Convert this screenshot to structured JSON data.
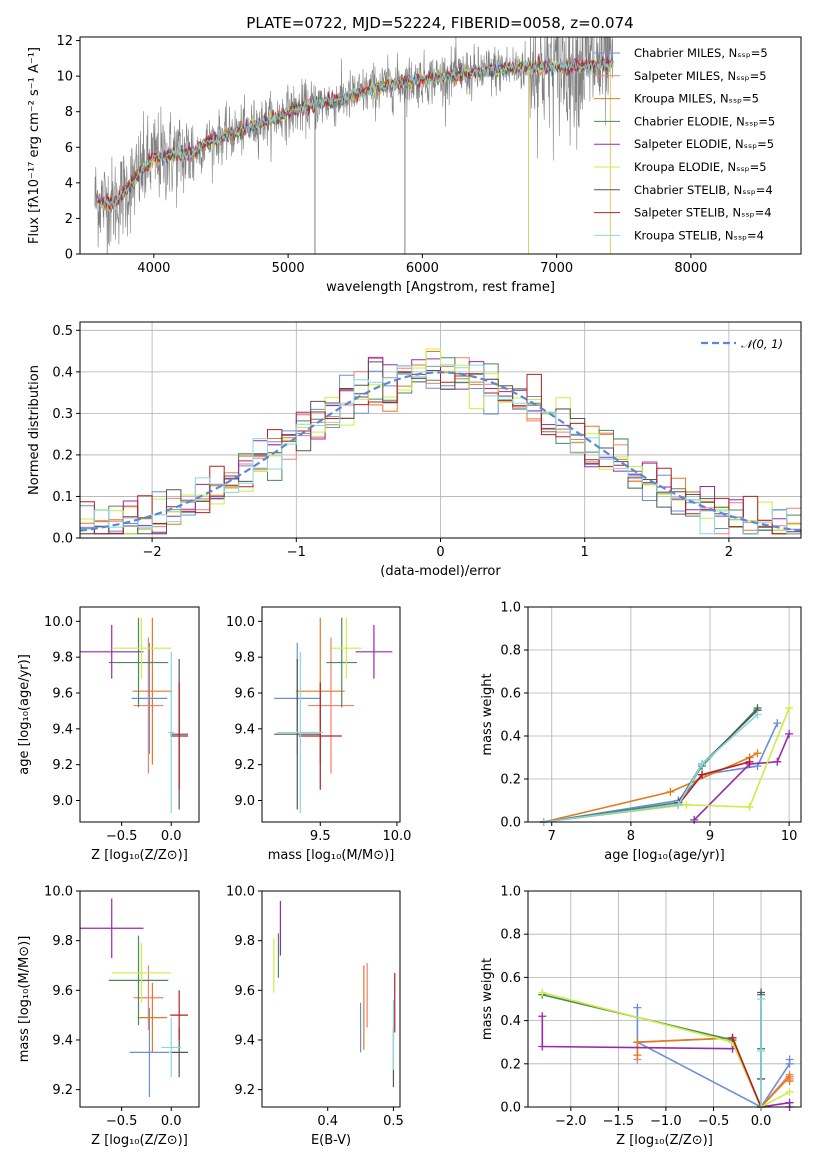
{
  "colors": [
    "#6a8fd6",
    "#f08070",
    "#e07b20",
    "#4a8a5a",
    "#9b27b0",
    "#ccee44",
    "#555555",
    "#b22222",
    "#88d8e0"
  ],
  "chart_data": [
    {
      "id": "spectrum",
      "type": "line",
      "title": "PLATE=0722, MJD=52224, FIBERID=0058, z=0.074",
      "xlabel": "wavelength [Angstrom, rest frame]",
      "ylabel": "Flux [fλ10⁻¹⁷ erg cm⁻² s⁻¹ A⁻¹]",
      "xlim": [
        3450,
        8820
      ],
      "ylim": [
        0,
        12.2
      ],
      "xticks": [
        "4000",
        "5000",
        "6000",
        "7000",
        "8000"
      ],
      "yticks": [
        "0",
        "2",
        "4",
        "6",
        "8",
        "10",
        "12"
      ],
      "grid": false,
      "legend_position": "top-right",
      "series": [
        {
          "name": "Chabrier MILES, Nₛₛₚ=5"
        },
        {
          "name": "Salpeter MILES, Nₛₛₚ=5"
        },
        {
          "name": "Kroupa MILES, Nₛₛₚ=5"
        },
        {
          "name": "Chabrier ELODIE, Nₛₛₚ=5"
        },
        {
          "name": "Salpeter ELODIE, Nₛₛₚ=5"
        },
        {
          "name": "Kroupa ELODIE, Nₛₛₚ=5"
        },
        {
          "name": "Chabrier STELIB, Nₛₛₚ=4"
        },
        {
          "name": "Salpeter STELIB, Nₛₛₚ=4"
        },
        {
          "name": "Kroupa STELIB, Nₛₛₚ=4"
        }
      ],
      "continuum": {
        "x": [
          3560,
          3700,
          3800,
          3900,
          4000,
          4100,
          4200,
          4300,
          4400,
          4500,
          4600,
          4700,
          4800,
          4900,
          5000,
          5200,
          5400,
          5600,
          5800,
          6000,
          6200,
          6400,
          6600,
          6800,
          7000,
          7200,
          7400
        ],
        "y": [
          3.1,
          2.8,
          3.6,
          4.6,
          5.4,
          5.5,
          5.6,
          5.7,
          6.3,
          6.6,
          6.8,
          7.1,
          7.4,
          7.6,
          8.0,
          8.4,
          8.7,
          9.2,
          9.6,
          9.8,
          10.0,
          10.2,
          10.4,
          10.5,
          10.5,
          10.6,
          10.7
        ]
      }
    },
    {
      "id": "residuals",
      "type": "histogram",
      "xlabel": "(data-model)/error",
      "ylabel": "Normed distribution",
      "xlim": [
        -2.5,
        2.5
      ],
      "ylim": [
        0,
        0.52
      ],
      "xticks": [
        "−2",
        "−1",
        "0",
        "1",
        "2"
      ],
      "yticks": [
        "0.0",
        "0.1",
        "0.2",
        "0.3",
        "0.4",
        "0.5"
      ],
      "grid": true,
      "bin_width": 0.1,
      "reference": {
        "name": "𝒩(0, 1)",
        "mean": 0,
        "sigma": 1
      },
      "legend_position": "top-right"
    },
    {
      "id": "age-vs-Z",
      "type": "errorbar",
      "xlabel": "Z [log₁₀(Z/Z⊙)]",
      "ylabel": "age  [log₁₀(age/yr)]",
      "xlim": [
        -0.92,
        0.28
      ],
      "ylim": [
        8.88,
        10.08
      ],
      "xticks": [
        "−0.5",
        "0.0"
      ],
      "xtick_values": [
        -0.5,
        0.0
      ],
      "yticks": [
        "9.0",
        "9.2",
        "9.4",
        "9.6",
        "9.8",
        "10.0"
      ],
      "points": [
        {
          "x": -0.22,
          "y": 9.57,
          "xerr": 0.18,
          "yerr": 0.31
        },
        {
          "x": -0.23,
          "y": 9.53,
          "xerr": 0.15,
          "yerr": 0.38
        },
        {
          "x": -0.19,
          "y": 9.61,
          "xerr": 0.2,
          "yerr": 0.41
        },
        {
          "x": -0.33,
          "y": 9.77,
          "xerr": 0.3,
          "yerr": 0.25
        },
        {
          "x": -0.6,
          "y": 9.83,
          "xerr": 0.32,
          "yerr": 0.15
        },
        {
          "x": -0.3,
          "y": 9.85,
          "xerr": 0.3,
          "yerr": 0.17
        },
        {
          "x": 0.08,
          "y": 9.37,
          "xerr": 0.09,
          "yerr": 0.42
        },
        {
          "x": 0.08,
          "y": 9.36,
          "xerr": 0.09,
          "yerr": 0.3
        },
        {
          "x": 0.0,
          "y": 9.38,
          "xerr": 0.03,
          "yerr": 0.45
        }
      ]
    },
    {
      "id": "age-vs-mass",
      "type": "errorbar",
      "xlabel": "mass [log₁₀(M/M⊙)]",
      "ylabel": "",
      "xlim": [
        9.12,
        10.02
      ],
      "ylim": [
        8.88,
        10.08
      ],
      "xticks": [
        "9.5",
        "10.0"
      ],
      "xtick_values": [
        9.5,
        10.0
      ],
      "yticks": [
        "9.0",
        "9.2",
        "9.4",
        "9.6",
        "9.8",
        "10.0"
      ],
      "points": [
        {
          "x": 9.35,
          "y": 9.57,
          "xerr": 0.15,
          "yerr": 0.31
        },
        {
          "x": 9.57,
          "y": 9.53,
          "xerr": 0.15,
          "yerr": 0.38
        },
        {
          "x": 9.5,
          "y": 9.61,
          "xerr": 0.16,
          "yerr": 0.41
        },
        {
          "x": 9.64,
          "y": 9.77,
          "xerr": 0.1,
          "yerr": 0.25
        },
        {
          "x": 9.85,
          "y": 9.83,
          "xerr": 0.12,
          "yerr": 0.15
        },
        {
          "x": 9.67,
          "y": 9.85,
          "xerr": 0.1,
          "yerr": 0.17
        },
        {
          "x": 9.35,
          "y": 9.37,
          "xerr": 0.15,
          "yerr": 0.42
        },
        {
          "x": 9.5,
          "y": 9.36,
          "xerr": 0.14,
          "yerr": 0.3
        },
        {
          "x": 9.37,
          "y": 9.38,
          "xerr": 0.15,
          "yerr": 0.45
        }
      ]
    },
    {
      "id": "mass-weight-vs-age",
      "type": "line",
      "xlabel": "age  [log₁₀(age/yr)]",
      "ylabel": "mass weight",
      "xlim": [
        6.7,
        10.15
      ],
      "ylim": [
        0,
        1.0
      ],
      "xticks": [
        "7",
        "8",
        "9",
        "10"
      ],
      "xtick_values": [
        7,
        8,
        9,
        10
      ],
      "yticks": [
        "0.0",
        "0.2",
        "0.4",
        "0.6",
        "0.8",
        "1.0"
      ],
      "grid": true,
      "series": [
        {
          "x": [
            6.9,
            8.6,
            8.9,
            9.6,
            9.85
          ],
          "y": [
            0.0,
            0.1,
            0.22,
            0.26,
            0.46
          ]
        },
        {
          "x": 6.9,
          "y": 0
        },
        {
          "x": [
            6.9,
            8.5,
            9.5,
            9.6
          ],
          "y": [
            0.0,
            0.14,
            0.3,
            0.32
          ]
        },
        {
          "x": [
            6.9,
            8.6,
            8.9,
            9.6
          ],
          "y": [
            0.0,
            0.09,
            0.26,
            0.53
          ]
        },
        {
          "x": [
            8.8,
            9.5,
            9.85,
            10.0
          ],
          "y": [
            0.01,
            0.27,
            0.28,
            0.41
          ]
        },
        {
          "x": [
            6.9,
            8.7,
            9.5,
            10.0
          ],
          "y": [
            0.0,
            0.08,
            0.07,
            0.53
          ]
        },
        {
          "x": [
            8.6,
            8.9,
            9.6
          ],
          "y": [
            0.09,
            0.27,
            0.52
          ]
        },
        {
          "x": [
            6.9,
            8.6,
            8.9,
            9.5
          ],
          "y": [
            0.0,
            0.08,
            0.22,
            0.28
          ]
        },
        {
          "x": [
            6.9,
            8.6,
            8.9,
            9.6
          ],
          "y": [
            0.0,
            0.08,
            0.27,
            0.5
          ]
        }
      ]
    },
    {
      "id": "mass-vs-Z",
      "type": "errorbar",
      "xlabel": "Z [log₁₀(Z/Z⊙)]",
      "ylabel": "mass [log₁₀(M/M⊙)]",
      "xlim": [
        -0.92,
        0.28
      ],
      "ylim": [
        9.13,
        10.0
      ],
      "xticks": [
        "−0.5",
        "0.0"
      ],
      "xtick_values": [
        -0.5,
        0.0
      ],
      "yticks": [
        "9.2",
        "9.4",
        "9.6",
        "9.8",
        "10.0"
      ],
      "points": [
        {
          "x": -0.22,
          "y": 9.35,
          "xerr": 0.2,
          "yerr": 0.18
        },
        {
          "x": -0.23,
          "y": 9.57,
          "xerr": 0.15,
          "yerr": 0.13
        },
        {
          "x": -0.19,
          "y": 9.49,
          "xerr": 0.15,
          "yerr": 0.14
        },
        {
          "x": -0.33,
          "y": 9.64,
          "xerr": 0.3,
          "yerr": 0.18
        },
        {
          "x": -0.6,
          "y": 9.85,
          "xerr": 0.32,
          "yerr": 0.12
        },
        {
          "x": -0.3,
          "y": 9.67,
          "xerr": 0.3,
          "yerr": 0.12
        },
        {
          "x": 0.08,
          "y": 9.35,
          "xerr": 0.09,
          "yerr": 0.1
        },
        {
          "x": 0.08,
          "y": 9.5,
          "xerr": 0.09,
          "yerr": 0.1
        },
        {
          "x": 0.0,
          "y": 9.37,
          "xerr": 0.1,
          "yerr": 0.12
        }
      ]
    },
    {
      "id": "mass-vs-ebv",
      "type": "errorbar",
      "xlabel": "E(B-V)",
      "ylabel": "",
      "xlim": [
        0.3,
        0.51
      ],
      "ylim": [
        9.13,
        10.0
      ],
      "xticks": [
        "0.4",
        "0.5"
      ],
      "xtick_values": [
        0.4,
        0.5
      ],
      "yticks": [
        "9.2",
        "9.4",
        "9.6",
        "9.8",
        "10.0"
      ],
      "points": [
        {
          "x": 0.45,
          "y": 9.45,
          "xerr": 0,
          "yerr": 0.1
        },
        {
          "x": 0.46,
          "y": 9.58,
          "xerr": 0,
          "yerr": 0.13
        },
        {
          "x": 0.455,
          "y": 9.53,
          "xerr": 0,
          "yerr": 0.17
        },
        {
          "x": 0.325,
          "y": 9.74,
          "xerr": 0,
          "yerr": 0.09
        },
        {
          "x": 0.328,
          "y": 9.85,
          "xerr": 0,
          "yerr": 0.11
        },
        {
          "x": 0.318,
          "y": 9.7,
          "xerr": 0,
          "yerr": 0.11
        },
        {
          "x": 0.5,
          "y": 9.33,
          "xerr": 0,
          "yerr": 0.12
        },
        {
          "x": 0.502,
          "y": 9.55,
          "xerr": 0,
          "yerr": 0.12
        },
        {
          "x": 0.5,
          "y": 9.42,
          "xerr": 0,
          "yerr": 0.14
        }
      ]
    },
    {
      "id": "mass-weight-vs-Z",
      "type": "line",
      "xlabel": "Z [log₁₀(Z/Z⊙)]",
      "ylabel": "mass weight",
      "xlim": [
        -2.45,
        0.42
      ],
      "ylim": [
        0,
        1.0
      ],
      "xticks": [
        "−2.0",
        "−1.5",
        "−1.0",
        "−0.5",
        "0.0"
      ],
      "xtick_values": [
        -2.0,
        -1.5,
        -1.0,
        -0.5,
        0.0
      ],
      "yticks": [
        "0.0",
        "0.2",
        "0.4",
        "0.6",
        "0.8",
        "1.0"
      ],
      "grid": true,
      "series": [
        {
          "x": [
            -1.3,
            -1.3,
            0.0,
            0.3,
            0.3
          ],
          "y": [
            0.46,
            0.3,
            0.0,
            0.2,
            0.22
          ]
        },
        {
          "x": [
            -1.3,
            -1.3,
            -0.3,
            0.0,
            0.3,
            0.3
          ],
          "y": [
            0.22,
            0.3,
            0.32,
            0.0,
            0.15,
            0.13
          ]
        },
        {
          "x": [
            -1.3,
            -1.3,
            -0.3,
            0.0,
            0.3,
            0.3
          ],
          "y": [
            0.24,
            0.3,
            0.32,
            0.0,
            0.14,
            0.12
          ]
        },
        {
          "x": [
            -2.3,
            -0.3,
            0.0,
            0.0,
            0.0
          ],
          "y": [
            0.52,
            0.31,
            0.0,
            0.52,
            0.27
          ]
        },
        {
          "x": [
            -2.3,
            -2.3,
            -0.3,
            -0.3,
            0.0,
            0.3,
            0.3
          ],
          "y": [
            0.42,
            0.28,
            0.27,
            0.3,
            0.0,
            0.02,
            0.0
          ]
        },
        {
          "x": [
            -2.3,
            -0.3,
            0.0,
            0.3
          ],
          "y": [
            0.53,
            0.3,
            0.0,
            0.07
          ]
        },
        {
          "x": [
            0.0,
            0.0
          ],
          "y": [
            0.13,
            0.53
          ]
        },
        {
          "x": [
            -0.3,
            0.0
          ],
          "y": [
            0.32,
            0.0
          ]
        },
        {
          "x": [
            0.0,
            0.0,
            0.0
          ],
          "y": [
            0.0,
            0.26,
            0.5
          ]
        }
      ]
    }
  ]
}
